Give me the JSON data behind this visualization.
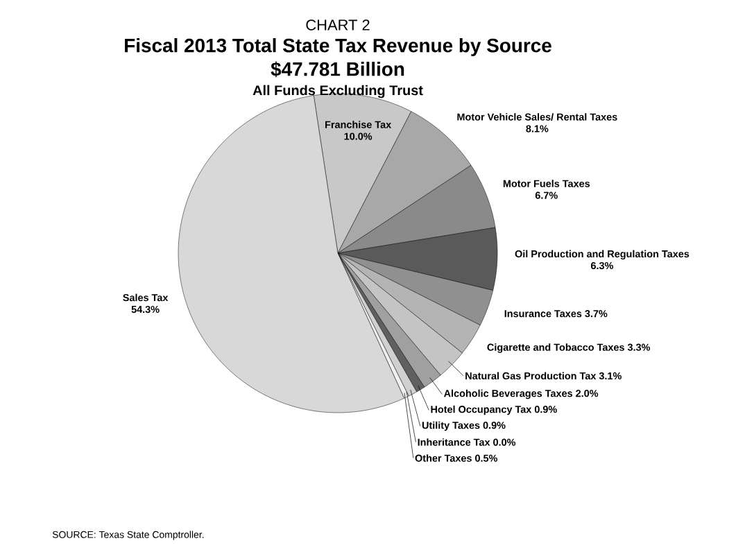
{
  "chart_data": {
    "type": "pie",
    "title": "Fiscal 2013 Total State Tax Revenue by Source",
    "subtitle": "$47.781 Billion",
    "annotations": [
      "CHART 2",
      "All Funds Excluding Trust",
      "SOURCE: Texas State Comptroller."
    ],
    "categories": [
      "Franchise Tax",
      "Motor Vehicle Sales/ Rental Taxes",
      "Motor Fuels Taxes",
      "Oil Production and Regulation Taxes",
      "Insurance Taxes",
      "Cigarette and Tobacco Taxes",
      "Natural Gas Production Tax",
      "Alcoholic Beverages Taxes",
      "Hotel Occupancy Tax",
      "Utility Taxes",
      "Inheritance Tax",
      "Other Taxes",
      "Sales Tax"
    ],
    "values": [
      10.0,
      8.1,
      6.7,
      6.3,
      3.7,
      3.3,
      3.1,
      2.0,
      0.9,
      0.9,
      0.0,
      0.5,
      54.3
    ],
    "value_labels": [
      "10.0%",
      "8.1%",
      "6.7%",
      "6.3%",
      "3.7%",
      "3.3%",
      "3.1%",
      "2.0%",
      "0.9%",
      "0.9%",
      "0.0%",
      "0.5%",
      "54.3%"
    ],
    "colors": [
      "#c8c8c8",
      "#a8a8a8",
      "#8a8a8a",
      "#5a5a5a",
      "#909090",
      "#b4b4b4",
      "#c4c4c4",
      "#a0a0a0",
      "#606060",
      "#d0d0d0",
      "#e0e0e0",
      "#f0f0f0",
      "#d8d8d8"
    ]
  }
}
